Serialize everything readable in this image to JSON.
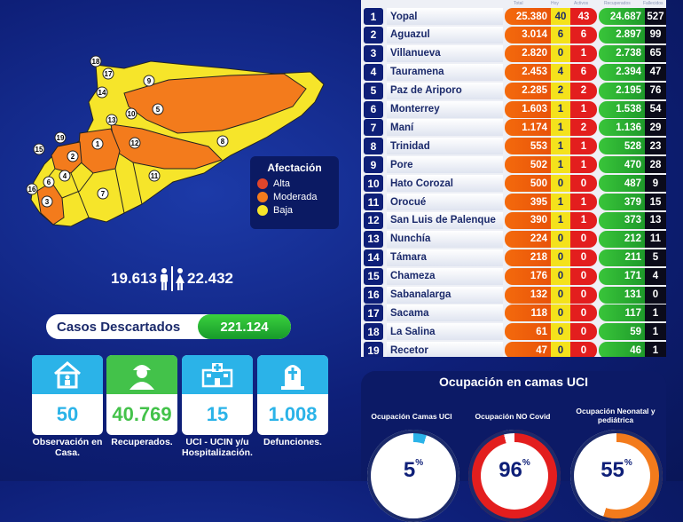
{
  "map": {
    "legend": {
      "title": "Afectación",
      "items": [
        {
          "label": "Alta",
          "color": "#e0452b"
        },
        {
          "label": "Moderada",
          "color": "#f37b1c"
        },
        {
          "label": "Baja",
          "color": "#f6e52a"
        }
      ]
    },
    "zones": [
      "1",
      "2",
      "3",
      "4",
      "5",
      "6",
      "7",
      "8",
      "9",
      "10",
      "11",
      "12",
      "13",
      "14",
      "15",
      "16",
      "17",
      "18",
      "19"
    ]
  },
  "population": {
    "male": "19.613",
    "female": "22.432"
  },
  "descartados": {
    "label": "Casos  Descartados",
    "value": "221.124"
  },
  "cards": [
    {
      "value": "50",
      "label": "Observación en Casa.",
      "icon": "house-icon",
      "top_color": "#2bb3e8",
      "value_color": "#2bb3e8"
    },
    {
      "value": "40.769",
      "label": "Recuperados.",
      "icon": "person-icon",
      "top_color": "#43c24a",
      "value_color": "#43c24a"
    },
    {
      "value": "15",
      "label": "UCI - UCIN y/u Hospitalización.",
      "icon": "hospital-icon",
      "top_color": "#2bb3e8",
      "value_color": "#2bb3e8"
    },
    {
      "value": "1.008",
      "label": "Defunciones.",
      "icon": "tombstone-icon",
      "top_color": "#2bb3e8",
      "value_color": "#2bb3e8"
    }
  ],
  "table": {
    "headers": {
      "total": "Total",
      "hoy": "Hoy",
      "activos": "Activos",
      "recuperados": "Recuperados",
      "fallecidos": "Fallecidos"
    },
    "rows": [
      {
        "n": "1",
        "name": "Yopal",
        "total": "25.380",
        "hoy": "40",
        "activos": "43",
        "rec": "24.687",
        "fal": "527"
      },
      {
        "n": "2",
        "name": "Aguazul",
        "total": "3.014",
        "hoy": "6",
        "activos": "6",
        "rec": "2.897",
        "fal": "99"
      },
      {
        "n": "3",
        "name": "Villanueva",
        "total": "2.820",
        "hoy": "0",
        "activos": "1",
        "rec": "2.738",
        "fal": "65"
      },
      {
        "n": "4",
        "name": "Tauramena",
        "total": "2.453",
        "hoy": "4",
        "activos": "6",
        "rec": "2.394",
        "fal": "47"
      },
      {
        "n": "5",
        "name": "Paz de Ariporo",
        "total": "2.285",
        "hoy": "2",
        "activos": "2",
        "rec": "2.195",
        "fal": "76"
      },
      {
        "n": "6",
        "name": "Monterrey",
        "total": "1.603",
        "hoy": "1",
        "activos": "1",
        "rec": "1.538",
        "fal": "54"
      },
      {
        "n": "7",
        "name": "Maní",
        "total": "1.174",
        "hoy": "1",
        "activos": "2",
        "rec": "1.136",
        "fal": "29"
      },
      {
        "n": "8",
        "name": "Trinidad",
        "total": "553",
        "hoy": "1",
        "activos": "1",
        "rec": "528",
        "fal": "23"
      },
      {
        "n": "9",
        "name": " Pore",
        "total": "502",
        "hoy": "1",
        "activos": "1",
        "rec": "470",
        "fal": "28"
      },
      {
        "n": "10",
        "name": "Hato Corozal",
        "total": "500",
        "hoy": "0",
        "activos": "0",
        "rec": "487",
        "fal": "9"
      },
      {
        "n": "11",
        "name": "Orocué",
        "total": "395",
        "hoy": "1",
        "activos": "1",
        "rec": "379",
        "fal": "15"
      },
      {
        "n": "12",
        "name": "San Luis de Palenque",
        "total": "390",
        "hoy": "1",
        "activos": "1",
        "rec": "373",
        "fal": "13"
      },
      {
        "n": "13",
        "name": "Nunchía",
        "total": "224",
        "hoy": "0",
        "activos": "0",
        "rec": "212",
        "fal": "11"
      },
      {
        "n": "14",
        "name": "Támara",
        "total": "218",
        "hoy": "0",
        "activos": "0",
        "rec": "211",
        "fal": "5"
      },
      {
        "n": "15",
        "name": "Chameza",
        "total": "176",
        "hoy": "0",
        "activos": "0",
        "rec": "171",
        "fal": "4"
      },
      {
        "n": "16",
        "name": "Sabanalarga",
        "total": "132",
        "hoy": "0",
        "activos": "0",
        "rec": "131",
        "fal": "0"
      },
      {
        "n": "17",
        "name": "Sacama",
        "total": "118",
        "hoy": "0",
        "activos": "0",
        "rec": "117",
        "fal": "1"
      },
      {
        "n": "18",
        "name": "La Salina",
        "total": "61",
        "hoy": "0",
        "activos": "0",
        "rec": "59",
        "fal": "1"
      },
      {
        "n": "19",
        "name": "Recetor",
        "total": "47",
        "hoy": "0",
        "activos": "0",
        "rec": "46",
        "fal": "1"
      }
    ]
  },
  "uci": {
    "title": "Ocupación en camas UCI",
    "gauges": [
      {
        "label": "Ocupación Camas UCI",
        "value": "5",
        "pct": "%",
        "fraction": 0.05,
        "color": "#2bb3e8"
      },
      {
        "label": "Ocupación NO Covid",
        "value": "96",
        "pct": "%",
        "fraction": 0.96,
        "color": "#e31e1e"
      },
      {
        "label": "Ocupación Neonatal y pediátrica",
        "value": "55",
        "pct": "%",
        "fraction": 0.55,
        "color": "#f37b1c"
      }
    ]
  }
}
